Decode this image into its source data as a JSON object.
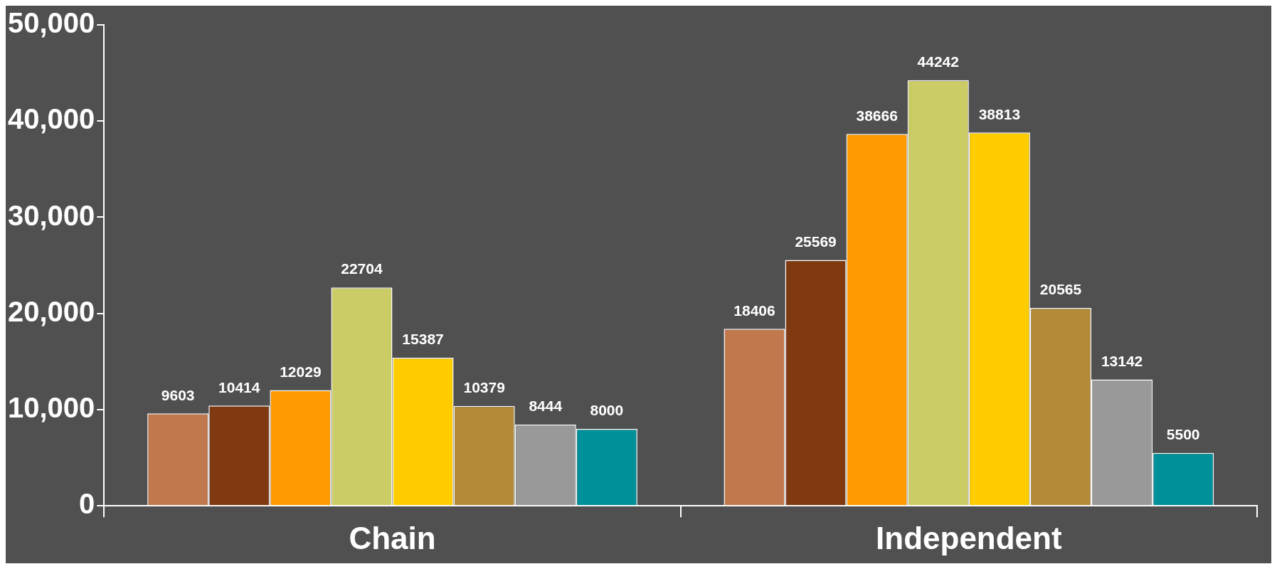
{
  "chart_data": {
    "type": "bar",
    "categories": [
      "Chain",
      "Independent"
    ],
    "series": [
      {
        "color": "#c0784c",
        "values": [
          9603,
          18406
        ]
      },
      {
        "color": "#7f3a12",
        "values": [
          10414,
          25569
        ]
      },
      {
        "color": "#ff9a00",
        "values": [
          12029,
          38666
        ]
      },
      {
        "color": "#cccc66",
        "values": [
          22704,
          44242
        ]
      },
      {
        "color": "#ffcc00",
        "values": [
          15387,
          38813
        ]
      },
      {
        "color": "#b38a38",
        "values": [
          10379,
          20565
        ]
      },
      {
        "color": "#999999",
        "values": [
          8444,
          13142
        ]
      },
      {
        "color": "#009099",
        "values": [
          8000,
          5500
        ]
      }
    ],
    "ylim": [
      0,
      50000
    ],
    "yticks": [
      {
        "value": 0,
        "label": "0"
      },
      {
        "value": 10000,
        "label": "10,000"
      },
      {
        "value": 20000,
        "label": "20,000"
      },
      {
        "value": 30000,
        "label": "30,000"
      },
      {
        "value": 40000,
        "label": "40,000"
      },
      {
        "value": 50000,
        "label": "50,000"
      }
    ],
    "data_labels": true,
    "grid": false,
    "legend": false
  }
}
